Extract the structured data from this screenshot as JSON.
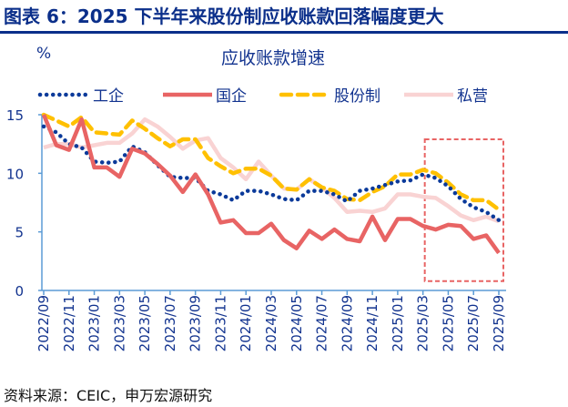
{
  "header": {
    "title": "图表 6：2025 下半年来股份制应收账款回落幅度更大"
  },
  "source": "资料来源：CEIC，申万宏源研究",
  "colors": {
    "title": "#0b2f8a",
    "axis": "#5b9bd5",
    "gongye": "#0b3a9a",
    "guoqi": "#e86464",
    "gufenzhi": "#ffc000",
    "siying": "#f9d3d3",
    "highlight_box": "#e86464"
  },
  "chart_data": {
    "type": "line",
    "title": "应收账款增速",
    "ylabel": "%",
    "ylim": [
      0,
      15
    ],
    "yticks": [
      0,
      5,
      10,
      15
    ],
    "grid": false,
    "legend_placement": "top",
    "x": [
      "2022/09",
      "2022/10",
      "2022/11",
      "2022/12",
      "2023/01",
      "2023/02",
      "2023/03",
      "2023/04",
      "2023/05",
      "2023/06",
      "2023/07",
      "2023/08",
      "2023/09",
      "2023/10",
      "2023/11",
      "2023/12",
      "2024/01",
      "2024/02",
      "2024/03",
      "2024/04",
      "2024/05",
      "2024/06",
      "2024/07",
      "2024/08",
      "2024/09",
      "2024/10",
      "2024/11",
      "2024/12",
      "2025/01",
      "2025/02",
      "2025/03",
      "2025/04",
      "2025/05",
      "2025/06",
      "2025/07",
      "2025/08",
      "2025/09"
    ],
    "xtick_labels": [
      "2022/09",
      "2022/11",
      "2023/01",
      "2023/03",
      "2023/05",
      "2023/07",
      "2023/09",
      "2023/11",
      "2024/01",
      "2024/03",
      "2024/05",
      "2024/07",
      "2024/09",
      "2024/11",
      "2025/01",
      "2025/03",
      "2025/05",
      "2025/07",
      "2025/09"
    ],
    "series": [
      {
        "name": "工企",
        "style": "dotted",
        "color": "#0b3a9a",
        "values": [
          14.0,
          13.5,
          12.5,
          12.2,
          11.0,
          10.9,
          11.0,
          12.3,
          11.8,
          10.7,
          9.7,
          9.6,
          9.6,
          8.5,
          8.2,
          7.7,
          8.5,
          8.5,
          8.2,
          7.8,
          7.7,
          8.5,
          8.5,
          8.2,
          7.6,
          8.5,
          8.7,
          9.0,
          9.3,
          9.4,
          9.9,
          9.6,
          8.9,
          7.8,
          7.1,
          6.7,
          6.0
        ]
      },
      {
        "name": "国企",
        "style": "solid",
        "color": "#e86464",
        "values": [
          15.0,
          12.4,
          12.0,
          14.6,
          10.5,
          10.5,
          9.7,
          12.1,
          11.7,
          10.8,
          9.8,
          8.4,
          9.9,
          8.2,
          5.8,
          6.0,
          4.9,
          4.9,
          5.7,
          4.3,
          3.6,
          5.1,
          4.4,
          5.2,
          4.4,
          4.2,
          6.3,
          4.3,
          6.1,
          6.1,
          5.5,
          5.2,
          5.6,
          5.5,
          4.4,
          4.7,
          3.2
        ]
      },
      {
        "name": "股份制",
        "style": "dashed",
        "color": "#ffc000",
        "values": [
          15.0,
          14.5,
          14.0,
          14.8,
          13.5,
          13.4,
          13.3,
          14.5,
          13.8,
          13.0,
          12.3,
          12.9,
          12.9,
          11.3,
          10.6,
          10.0,
          10.4,
          10.4,
          9.8,
          8.7,
          8.6,
          9.5,
          8.8,
          8.5,
          7.8,
          7.7,
          8.4,
          8.9,
          9.9,
          9.9,
          10.3,
          10.0,
          9.2,
          8.2,
          7.7,
          7.7,
          6.9
        ]
      },
      {
        "name": "私营",
        "style": "solid",
        "color": "#f9d3d3",
        "values": [
          12.2,
          12.5,
          12.5,
          12.2,
          12.4,
          12.6,
          12.6,
          13.4,
          14.6,
          14.0,
          13.1,
          12.1,
          12.8,
          13.0,
          11.3,
          10.5,
          9.5,
          11.0,
          9.8,
          8.7,
          8.6,
          9.5,
          8.8,
          7.9,
          6.7,
          6.8,
          6.7,
          7.0,
          8.2,
          8.2,
          8.0,
          7.9,
          7.2,
          6.4,
          6.0,
          6.3,
          5.9
        ]
      }
    ],
    "annotations": [
      {
        "type": "dashed-box",
        "x_range": [
          "2025/03",
          "2025/09"
        ],
        "y_range": [
          0.8,
          12.9
        ]
      }
    ]
  }
}
